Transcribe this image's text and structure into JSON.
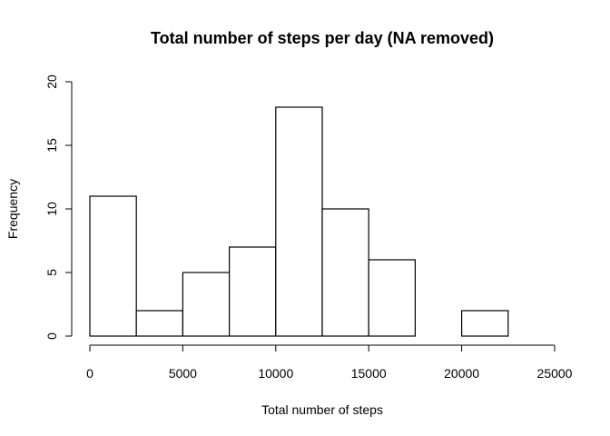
{
  "chart_data": {
    "type": "bar",
    "title": "Total number of steps per day (NA removed)",
    "xlabel": "Total number of steps",
    "ylabel": "Frequency",
    "bins": [
      {
        "from": 0,
        "to": 2500,
        "count": 11
      },
      {
        "from": 2500,
        "to": 5000,
        "count": 2
      },
      {
        "from": 5000,
        "to": 7500,
        "count": 5
      },
      {
        "from": 7500,
        "to": 10000,
        "count": 7
      },
      {
        "from": 10000,
        "to": 12500,
        "count": 18
      },
      {
        "from": 12500,
        "to": 15000,
        "count": 10
      },
      {
        "from": 15000,
        "to": 17500,
        "count": 6
      },
      {
        "from": 17500,
        "to": 20000,
        "count": 0
      },
      {
        "from": 20000,
        "to": 22500,
        "count": 2
      },
      {
        "from": 22500,
        "to": 25000,
        "count": 0
      }
    ],
    "xlim": [
      0,
      25000
    ],
    "ylim": [
      0,
      20
    ],
    "xticks": [
      "0",
      "5000",
      "10000",
      "15000",
      "20000",
      "25000"
    ],
    "yticks": [
      "0",
      "5",
      "10",
      "15",
      "20"
    ],
    "grid": false,
    "legend": "none",
    "bar_color": "#ffffff",
    "edge_color": "#000000"
  }
}
